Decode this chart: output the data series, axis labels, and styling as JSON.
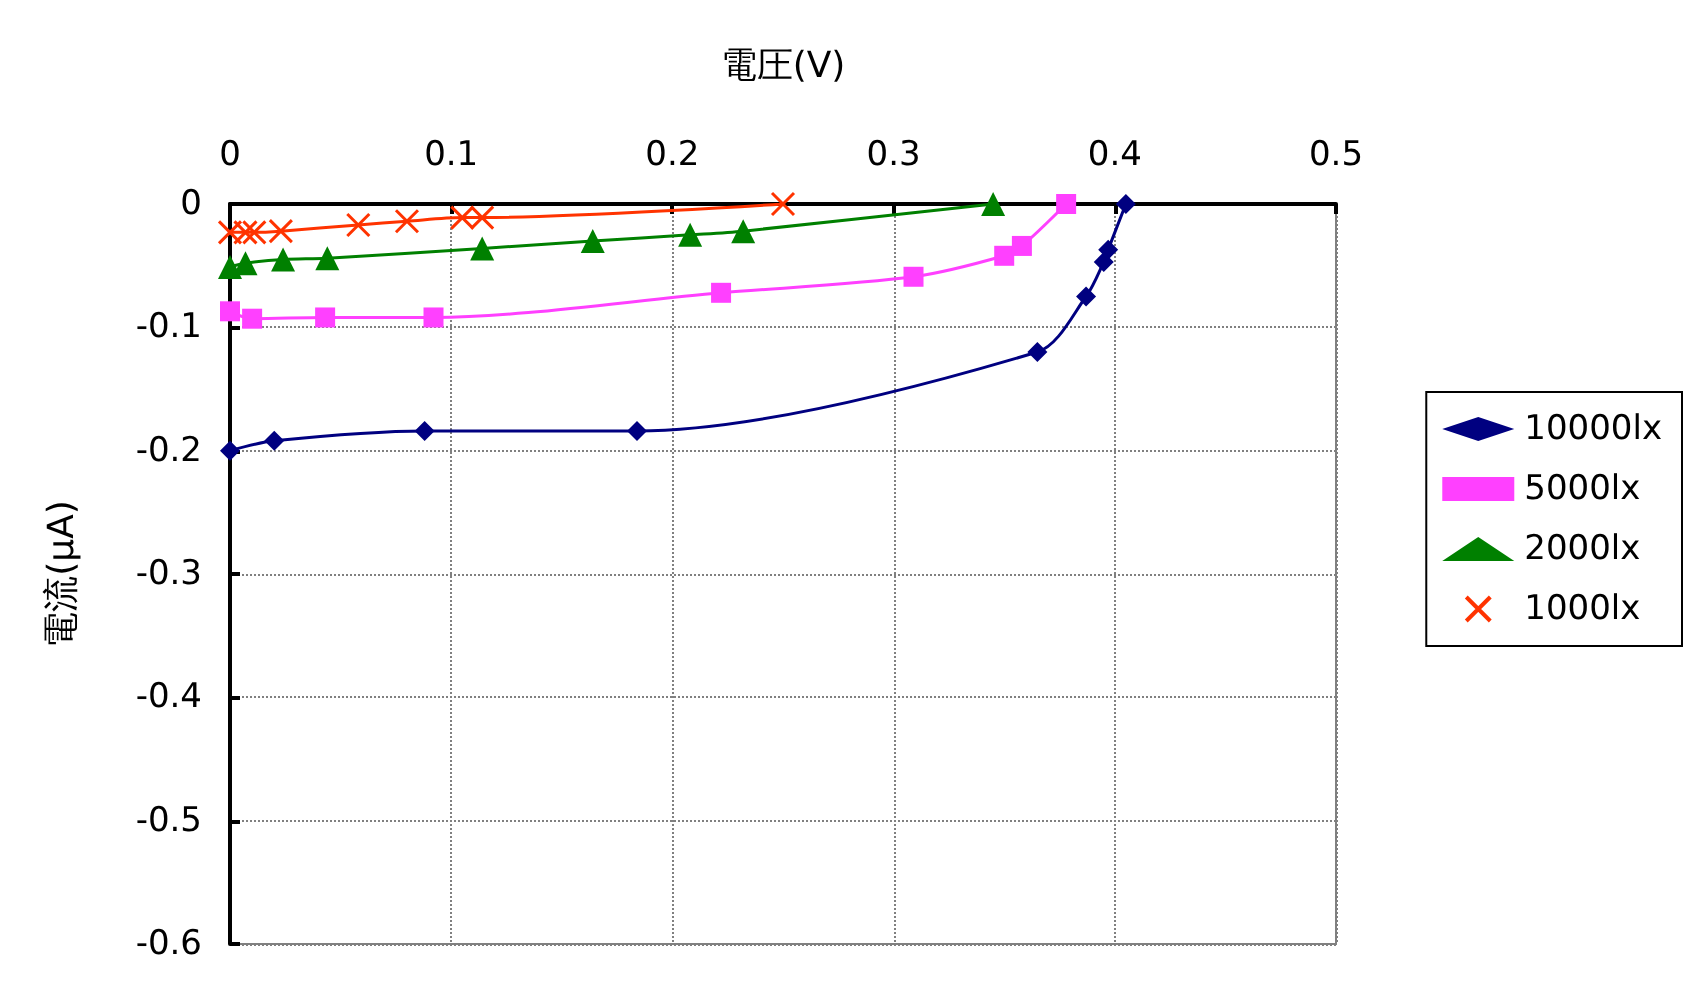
{
  "chart_data": {
    "type": "line",
    "xlabel": "電圧(V)",
    "ylabel": "電流(μA)",
    "xlim": [
      0,
      0.5
    ],
    "xticks": [
      0,
      0.1,
      0.2,
      0.3,
      0.4,
      0.5
    ],
    "ylim": [
      -0.6,
      0
    ],
    "yticks": [
      -0.6,
      -0.5,
      -0.4,
      -0.3,
      -0.2,
      -0.1,
      0
    ],
    "grid": true,
    "legend": "right",
    "line_style": "solid",
    "series": [
      {
        "name": "10000lx",
        "color": "#000080",
        "marker": "diamond",
        "x": [
          0,
          0.02,
          0.088,
          0.184,
          0.365,
          0.387,
          0.395,
          0.397,
          0.405
        ],
        "values": [
          -0.2,
          -0.192,
          -0.184,
          -0.184,
          -0.12,
          -0.075,
          -0.047,
          -0.037,
          0
        ]
      },
      {
        "name": "5000lx",
        "color": "#ff40ff",
        "marker": "square",
        "x": [
          0,
          0.01,
          0.043,
          0.092,
          0.222,
          0.309,
          0.35,
          0.358,
          0.378
        ],
        "values": [
          -0.087,
          -0.093,
          -0.092,
          -0.092,
          -0.072,
          -0.059,
          -0.042,
          -0.034,
          0
        ]
      },
      {
        "name": "2000lx",
        "color": "#008000",
        "marker": "triangle",
        "x": [
          0,
          0.007,
          0.024,
          0.044,
          0.114,
          0.164,
          0.208,
          0.232,
          0.345
        ],
        "values": [
          -0.051,
          -0.048,
          -0.045,
          -0.044,
          -0.036,
          -0.03,
          -0.025,
          -0.022,
          0
        ]
      },
      {
        "name": "1000lx",
        "color": "#ff3300",
        "marker": "cross",
        "x": [
          0,
          0.007,
          0.011,
          0.023,
          0.058,
          0.08,
          0.105,
          0.114,
          0.25
        ],
        "values": [
          -0.023,
          -0.023,
          -0.023,
          -0.022,
          -0.017,
          -0.014,
          -0.011,
          -0.011,
          0
        ]
      }
    ]
  }
}
